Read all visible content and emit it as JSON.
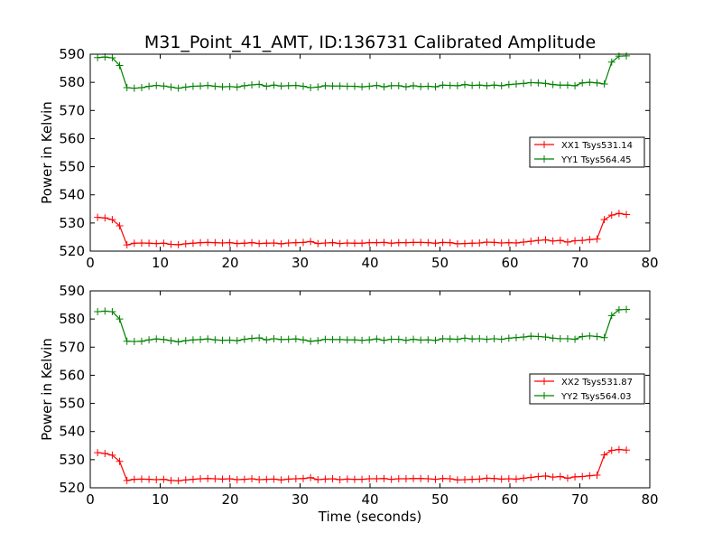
{
  "title": "M31_Point_41_AMT, ID:136731 Calibrated Amplitude",
  "chart_data": [
    {
      "type": "line",
      "ylabel": "Power in Kelvin",
      "xlabel": "",
      "xlim": [
        0,
        80
      ],
      "ylim": [
        520,
        590
      ],
      "xticks": [
        0,
        10,
        20,
        30,
        40,
        50,
        60,
        70,
        80
      ],
      "yticks": [
        520,
        530,
        540,
        550,
        560,
        570,
        580,
        590
      ],
      "grid": false,
      "legend_position": "center-right",
      "x": [
        1.05,
        2.1,
        3.15,
        4.2,
        5.25,
        6.3,
        7.35,
        8.4,
        9.45,
        10.5,
        11.55,
        12.6,
        13.65,
        14.7,
        15.75,
        16.8,
        17.85,
        18.9,
        19.95,
        21.0,
        22.05,
        23.1,
        24.15,
        25.2,
        26.25,
        27.3,
        28.35,
        29.4,
        30.45,
        31.5,
        32.55,
        33.6,
        34.65,
        35.7,
        36.75,
        37.8,
        38.85,
        39.9,
        40.95,
        42.0,
        43.05,
        44.1,
        45.15,
        46.2,
        47.25,
        48.3,
        49.35,
        50.4,
        51.45,
        52.5,
        53.55,
        54.6,
        55.65,
        56.7,
        57.75,
        58.8,
        59.85,
        60.9,
        61.95,
        63.0,
        64.05,
        65.1,
        66.15,
        67.2,
        68.25,
        69.3,
        70.35,
        71.4,
        72.45,
        73.5,
        74.55,
        75.6,
        76.65
      ],
      "series": [
        {
          "name": "XX1 Tsys531.14",
          "color": "#ff0000",
          "values": [
            532.0,
            531.8,
            531.2,
            529.0,
            522.2,
            522.8,
            522.9,
            522.8,
            522.7,
            522.8,
            522.4,
            522.3,
            522.6,
            522.8,
            523.0,
            523.1,
            523.0,
            522.9,
            523.0,
            522.7,
            522.8,
            523.0,
            522.7,
            522.8,
            522.9,
            522.6,
            522.9,
            523.0,
            523.1,
            523.4,
            522.7,
            522.9,
            523.0,
            522.7,
            522.9,
            522.8,
            522.8,
            523.0,
            523.0,
            523.1,
            522.8,
            523.0,
            523.0,
            523.1,
            523.1,
            523.0,
            522.8,
            523.1,
            523.0,
            522.6,
            522.7,
            522.8,
            522.9,
            523.2,
            523.1,
            522.9,
            523.0,
            522.9,
            523.2,
            523.5,
            523.8,
            524.0,
            523.6,
            523.8,
            523.2,
            523.7,
            523.8,
            524.1,
            524.3,
            531.2,
            532.8,
            533.4,
            533.0
          ]
        },
        {
          "name": "YY1 Tsys564.45",
          "color": "#008000",
          "values": [
            588.8,
            589.0,
            588.7,
            586.0,
            578.1,
            577.9,
            578.1,
            578.6,
            578.9,
            578.7,
            578.3,
            577.9,
            578.3,
            578.6,
            578.7,
            578.9,
            578.6,
            578.4,
            578.5,
            578.3,
            578.8,
            579.1,
            579.3,
            578.6,
            579.0,
            578.7,
            578.8,
            578.9,
            578.6,
            578.1,
            578.3,
            578.8,
            578.7,
            578.7,
            578.6,
            578.6,
            578.4,
            578.6,
            578.9,
            578.4,
            578.8,
            578.8,
            578.4,
            578.8,
            578.5,
            578.6,
            578.4,
            579.0,
            578.9,
            578.8,
            579.2,
            578.9,
            579.0,
            578.8,
            579.0,
            578.8,
            579.2,
            579.4,
            579.6,
            579.9,
            579.8,
            579.6,
            579.2,
            579.0,
            579.0,
            578.8,
            579.8,
            580.0,
            579.8,
            579.4,
            587.2,
            589.3,
            589.4
          ]
        }
      ]
    },
    {
      "type": "line",
      "ylabel": "Power in Kelvin",
      "xlabel": "Time (seconds)",
      "xlim": [
        0,
        80
      ],
      "ylim": [
        520,
        590
      ],
      "xticks": [
        0,
        10,
        20,
        30,
        40,
        50,
        60,
        70,
        80
      ],
      "yticks": [
        520,
        530,
        540,
        550,
        560,
        570,
        580,
        590
      ],
      "grid": false,
      "legend_position": "center-right",
      "x": [
        1.05,
        2.1,
        3.15,
        4.2,
        5.25,
        6.3,
        7.35,
        8.4,
        9.45,
        10.5,
        11.55,
        12.6,
        13.65,
        14.7,
        15.75,
        16.8,
        17.85,
        18.9,
        19.95,
        21.0,
        22.05,
        23.1,
        24.15,
        25.2,
        26.25,
        27.3,
        28.35,
        29.4,
        30.45,
        31.5,
        32.55,
        33.6,
        34.65,
        35.7,
        36.75,
        37.8,
        38.85,
        39.9,
        40.95,
        42.0,
        43.05,
        44.1,
        45.15,
        46.2,
        47.25,
        48.3,
        49.35,
        50.4,
        51.45,
        52.5,
        53.55,
        54.6,
        55.65,
        56.7,
        57.75,
        58.8,
        59.85,
        60.9,
        61.95,
        63.0,
        64.05,
        65.1,
        66.15,
        67.2,
        68.25,
        69.3,
        70.35,
        71.4,
        72.45,
        73.5,
        74.55,
        75.6,
        76.65
      ],
      "series": [
        {
          "name": "XX2 Tsys531.87",
          "color": "#ff0000",
          "values": [
            532.5,
            532.2,
            531.6,
            529.4,
            522.6,
            523.0,
            523.1,
            523.0,
            522.9,
            523.0,
            522.6,
            522.5,
            522.8,
            523.0,
            523.2,
            523.3,
            523.2,
            523.1,
            523.2,
            522.9,
            523.0,
            523.2,
            522.9,
            523.0,
            523.1,
            522.8,
            523.1,
            523.2,
            523.3,
            523.6,
            522.9,
            523.1,
            523.2,
            522.9,
            523.1,
            523.0,
            523.0,
            523.2,
            523.2,
            523.3,
            523.0,
            523.2,
            523.2,
            523.3,
            523.3,
            523.2,
            523.0,
            523.3,
            523.2,
            522.8,
            522.9,
            523.0,
            523.1,
            523.4,
            523.3,
            523.1,
            523.2,
            523.1,
            523.4,
            523.7,
            524.0,
            524.2,
            523.8,
            524.0,
            523.4,
            523.9,
            524.0,
            524.3,
            524.5,
            531.7,
            533.3,
            533.6,
            533.4
          ]
        },
        {
          "name": "YY2 Tsys564.03",
          "color": "#008000",
          "values": [
            582.6,
            582.8,
            582.6,
            580.0,
            572.1,
            572.0,
            572.1,
            572.6,
            572.9,
            572.7,
            572.3,
            571.9,
            572.3,
            572.6,
            572.7,
            572.9,
            572.6,
            572.4,
            572.5,
            572.3,
            572.8,
            573.1,
            573.3,
            572.6,
            573.0,
            572.7,
            572.8,
            572.9,
            572.6,
            572.1,
            572.3,
            572.8,
            572.7,
            572.7,
            572.6,
            572.6,
            572.4,
            572.6,
            572.9,
            572.4,
            572.8,
            572.8,
            572.4,
            572.8,
            572.5,
            572.6,
            572.4,
            573.0,
            572.9,
            572.8,
            573.2,
            572.9,
            573.0,
            572.8,
            573.0,
            572.8,
            573.2,
            573.4,
            573.6,
            573.9,
            573.8,
            573.6,
            573.2,
            573.0,
            573.0,
            572.8,
            573.8,
            574.0,
            573.8,
            573.4,
            581.2,
            583.3,
            583.4
          ]
        }
      ]
    }
  ]
}
